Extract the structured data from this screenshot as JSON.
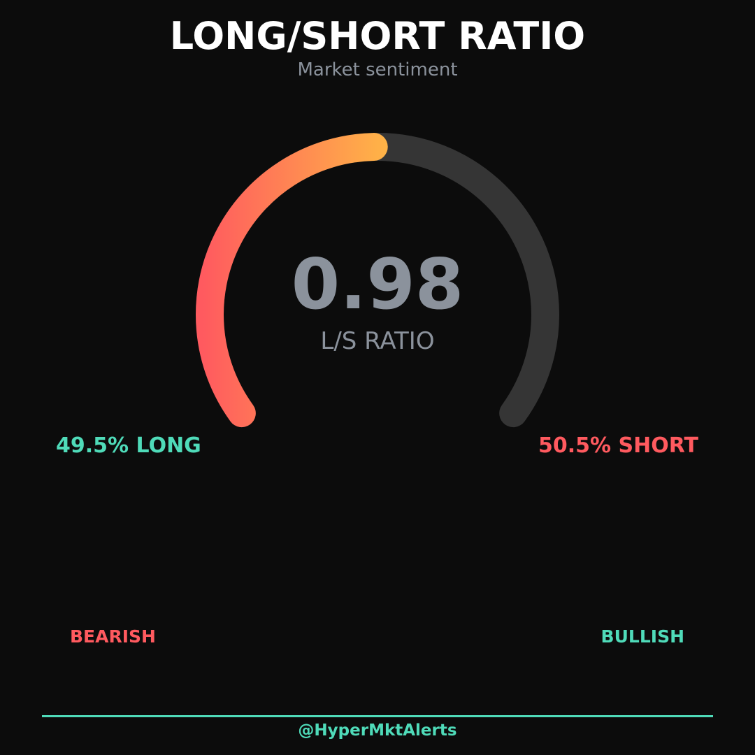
{
  "header": {
    "title": "LONG/SHORT RATIO",
    "subtitle": "Market sentiment"
  },
  "chart_data": {
    "type": "gauge",
    "value": 0.98,
    "value_text": "0.98",
    "value_label": "L/S RATIO",
    "long_pct": 49.5,
    "short_pct": 50.5,
    "long_label": "49.5% LONG",
    "short_label": "50.5% SHORT",
    "left_label": "BEARISH",
    "right_label": "BULLISH"
  },
  "colors": {
    "long": "#4fdbb9",
    "short": "#ff5a5f",
    "gradient_start": "#ff5a5f",
    "gradient_end": "#ffb347",
    "track": "#353535",
    "value_text": "#8b929c"
  },
  "footer": {
    "handle": "@HyperMktAlerts"
  }
}
